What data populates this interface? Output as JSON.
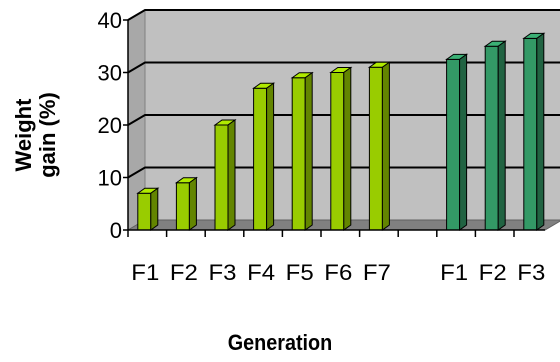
{
  "chart_data": {
    "type": "bar",
    "title": "",
    "xlabel": "Generation",
    "ylabel_lines": [
      "Weight",
      "gain (%)"
    ],
    "ylim": [
      0,
      40
    ],
    "yticks": [
      0,
      10,
      20,
      30,
      40
    ],
    "grid": true,
    "groups": [
      {
        "color": "#99cc00",
        "categories": [
          "F1",
          "F2",
          "F3",
          "F4",
          "F5",
          "F6",
          "F7"
        ],
        "values": [
          7,
          9,
          20,
          27,
          29,
          30,
          31
        ]
      },
      {
        "color": "#339966",
        "categories": [
          "F1",
          "F2",
          "F3"
        ],
        "values": [
          32.5,
          35,
          36.5
        ]
      }
    ]
  }
}
